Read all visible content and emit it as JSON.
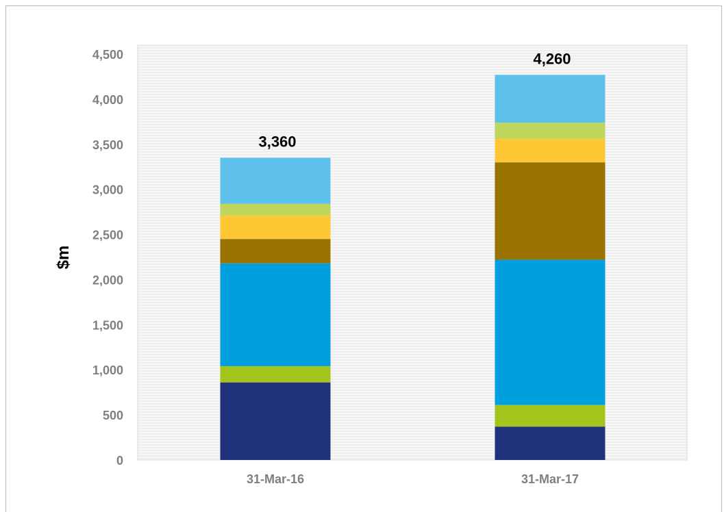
{
  "chart_data": {
    "type": "bar",
    "stacked": true,
    "categories": [
      "31-Mar-16",
      "31-Mar-17"
    ],
    "series": [
      {
        "color": "#21327d",
        "values": [
          860,
          370
        ]
      },
      {
        "color": "#a3c51b",
        "values": [
          180,
          240
        ]
      },
      {
        "color": "#009fdf",
        "values": [
          1140,
          1610
        ]
      },
      {
        "color": "#997300",
        "values": [
          270,
          1080
        ]
      },
      {
        "color": "#ffc734",
        "values": [
          260,
          260
        ]
      },
      {
        "color": "#bdd65b",
        "values": [
          130,
          180
        ]
      },
      {
        "color": "#5ec1eb",
        "values": [
          510,
          530
        ]
      }
    ],
    "totals": [
      "3,360",
      "4,260"
    ],
    "ylabel": "$m",
    "ylim": [
      0,
      4500
    ],
    "yticks": [
      "0",
      "500",
      "1,000",
      "1,500",
      "2,000",
      "2,500",
      "3,000",
      "3,500",
      "4,000",
      "4,500"
    ],
    "grid": true,
    "legend": "none"
  }
}
